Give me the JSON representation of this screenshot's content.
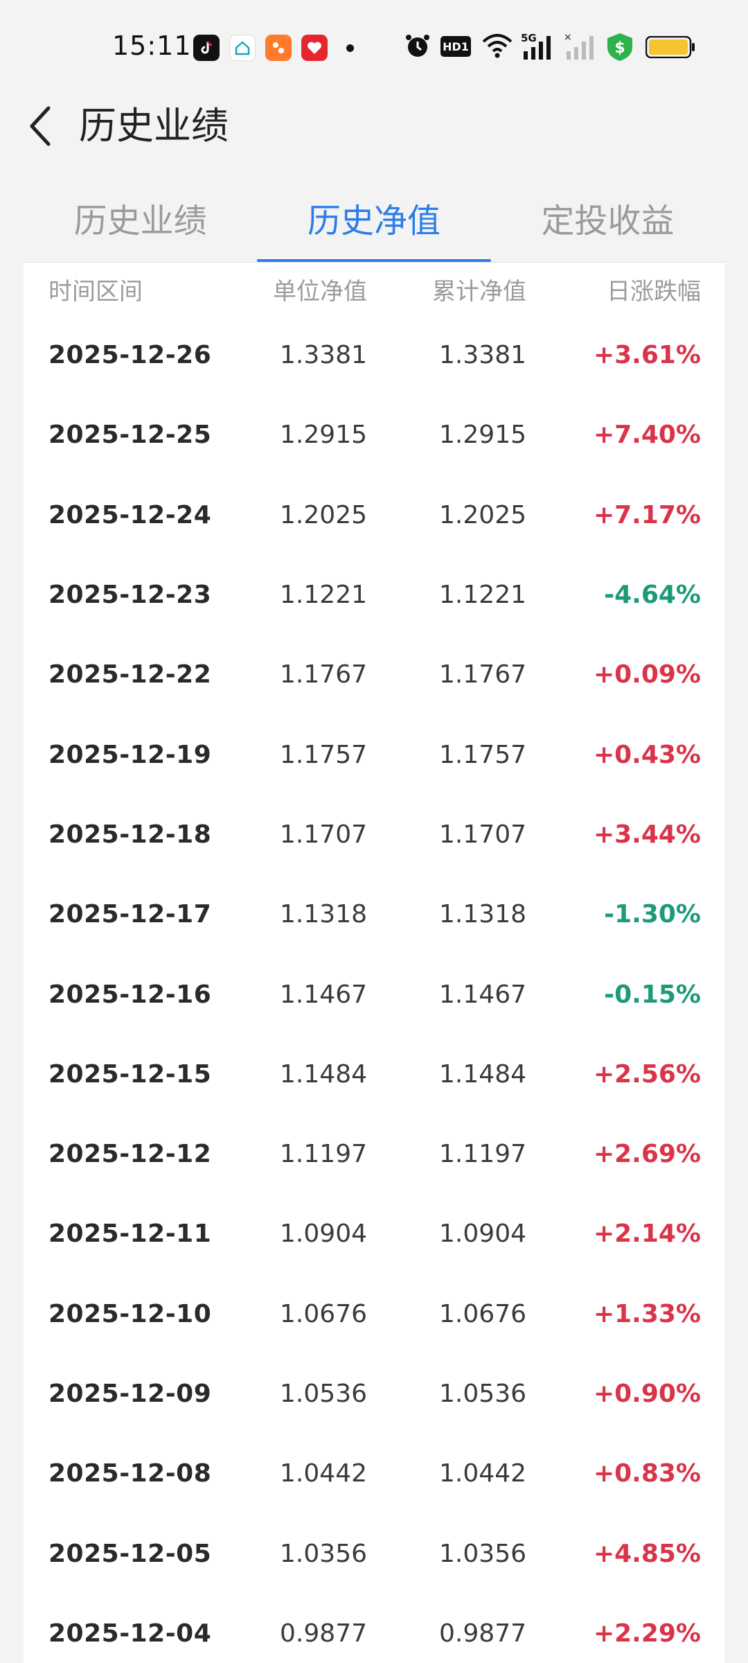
{
  "status_bar": {
    "time": "15:11",
    "network": "5G",
    "hd_label": "HD1",
    "icons": [
      "tiktok-icon",
      "home-app-icon",
      "shopping-app-icon",
      "heart-app-icon",
      "alarm-icon",
      "hd-icon",
      "wifi-icon",
      "signal-5g-icon",
      "signal-icon",
      "security-shield-icon",
      "battery-icon"
    ],
    "battery_color": "#f5c430"
  },
  "header": {
    "title": "历史业绩",
    "back_icon": "chevron-left-icon"
  },
  "tabs": [
    {
      "label": "历史业绩",
      "active": false
    },
    {
      "label": "历史净值",
      "active": true
    },
    {
      "label": "定投收益",
      "active": false
    }
  ],
  "colors": {
    "accent": "#2b7de9",
    "up": "#d9344a",
    "down": "#1c9a7a"
  },
  "table": {
    "headers": {
      "date": "时间区间",
      "unit_nav": "单位净值",
      "cumulative_nav": "累计净值",
      "daily_change": "日涨跌幅"
    },
    "rows": [
      {
        "date": "2025-12-26",
        "unit_nav": "1.3381",
        "cumulative_nav": "1.3381",
        "daily_change": "+3.61%",
        "direction": "up"
      },
      {
        "date": "2025-12-25",
        "unit_nav": "1.2915",
        "cumulative_nav": "1.2915",
        "daily_change": "+7.40%",
        "direction": "up"
      },
      {
        "date": "2025-12-24",
        "unit_nav": "1.2025",
        "cumulative_nav": "1.2025",
        "daily_change": "+7.17%",
        "direction": "up"
      },
      {
        "date": "2025-12-23",
        "unit_nav": "1.1221",
        "cumulative_nav": "1.1221",
        "daily_change": "-4.64%",
        "direction": "down"
      },
      {
        "date": "2025-12-22",
        "unit_nav": "1.1767",
        "cumulative_nav": "1.1767",
        "daily_change": "+0.09%",
        "direction": "up"
      },
      {
        "date": "2025-12-19",
        "unit_nav": "1.1757",
        "cumulative_nav": "1.1757",
        "daily_change": "+0.43%",
        "direction": "up"
      },
      {
        "date": "2025-12-18",
        "unit_nav": "1.1707",
        "cumulative_nav": "1.1707",
        "daily_change": "+3.44%",
        "direction": "up"
      },
      {
        "date": "2025-12-17",
        "unit_nav": "1.1318",
        "cumulative_nav": "1.1318",
        "daily_change": "-1.30%",
        "direction": "down"
      },
      {
        "date": "2025-12-16",
        "unit_nav": "1.1467",
        "cumulative_nav": "1.1467",
        "daily_change": "-0.15%",
        "direction": "down"
      },
      {
        "date": "2025-12-15",
        "unit_nav": "1.1484",
        "cumulative_nav": "1.1484",
        "daily_change": "+2.56%",
        "direction": "up"
      },
      {
        "date": "2025-12-12",
        "unit_nav": "1.1197",
        "cumulative_nav": "1.1197",
        "daily_change": "+2.69%",
        "direction": "up"
      },
      {
        "date": "2025-12-11",
        "unit_nav": "1.0904",
        "cumulative_nav": "1.0904",
        "daily_change": "+2.14%",
        "direction": "up"
      },
      {
        "date": "2025-12-10",
        "unit_nav": "1.0676",
        "cumulative_nav": "1.0676",
        "daily_change": "+1.33%",
        "direction": "up"
      },
      {
        "date": "2025-12-09",
        "unit_nav": "1.0536",
        "cumulative_nav": "1.0536",
        "daily_change": "+0.90%",
        "direction": "up"
      },
      {
        "date": "2025-12-08",
        "unit_nav": "1.0442",
        "cumulative_nav": "1.0442",
        "daily_change": "+0.83%",
        "direction": "up"
      },
      {
        "date": "2025-12-05",
        "unit_nav": "1.0356",
        "cumulative_nav": "1.0356",
        "daily_change": "+4.85%",
        "direction": "up"
      },
      {
        "date": "2025-12-04",
        "unit_nav": "0.9877",
        "cumulative_nav": "0.9877",
        "daily_change": "+2.29%",
        "direction": "up"
      }
    ]
  }
}
